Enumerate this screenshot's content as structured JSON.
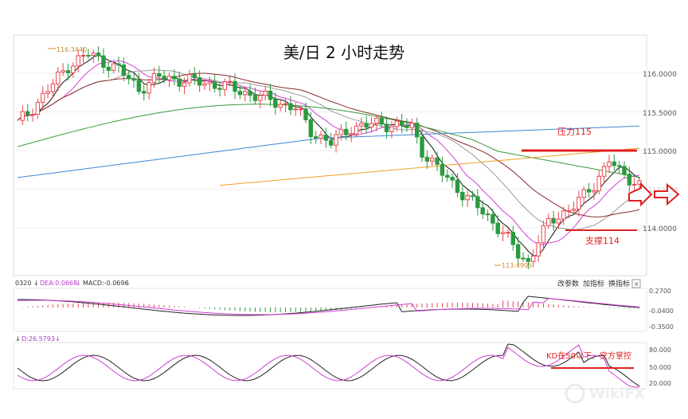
{
  "chart_data": [
    {
      "type": "candlestick",
      "title": "美/日 2 小时走势",
      "ylim": [
        113.4,
        116.4
      ],
      "y_ticks": [
        "116.0000",
        "115.5000",
        "115.0000",
        "114.0000"
      ],
      "y_tick_values": [
        116.0,
        115.5,
        115.0,
        114.0
      ],
      "cut_label": "114.5000",
      "high_label": "116.3440",
      "low_label": "113.4905",
      "high": 116.344,
      "low": 113.4905,
      "annotations": {
        "resistance": {
          "label": "压力115",
          "value": 115.0
        },
        "support": {
          "label": "支撑114",
          "value": 113.98
        }
      },
      "colors": {
        "up": "#e8474f",
        "down": "#2b9a3e",
        "ma5": "#111111",
        "ma10": "#d23ed6",
        "ma20": "#9a9a9a",
        "ma30": "#8b2a2f",
        "ma60": "#3a9a3a",
        "ma120": "#3f86d6",
        "ma250": "#f0a020",
        "accent": "#e02020"
      }
    },
    {
      "type": "macd",
      "header": {
        "code": "0320",
        "dea": "DEA:0.0668",
        "macd": "MACD:-0.0696"
      },
      "buttons": [
        "改参数",
        "加指标",
        "换指标",
        "×"
      ],
      "y_ticks": [
        "0.2700",
        "-0.0400",
        "-0.3500"
      ]
    },
    {
      "type": "kd",
      "header": {
        "d": "D:26.5793"
      },
      "y_ticks": [
        "80.000",
        "50.000",
        "20.000"
      ],
      "note": "KD在50以下，空方掌控"
    }
  ]
}
